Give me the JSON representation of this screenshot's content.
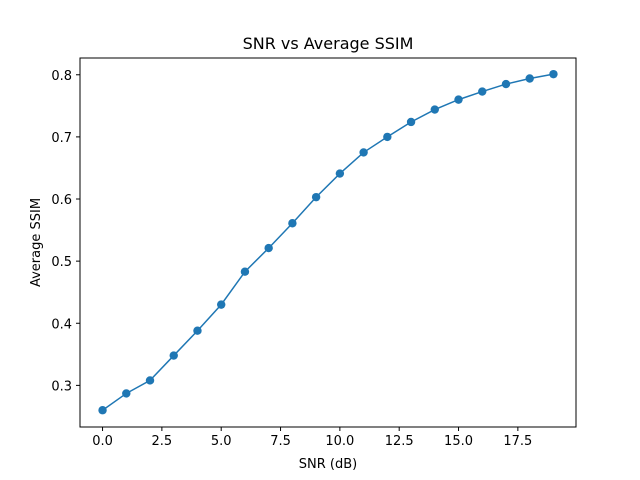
{
  "chart_data": {
    "type": "line",
    "title": "SNR vs Average SSIM",
    "xlabel": "SNR (dB)",
    "ylabel": "Average SSIM",
    "xlim": [
      -0.95,
      19.95
    ],
    "ylim": [
      0.233,
      0.827
    ],
    "grid": false,
    "x_ticks": [
      0.0,
      2.5,
      5.0,
      7.5,
      10.0,
      12.5,
      15.0,
      17.5
    ],
    "x_tick_labels": [
      "0.0",
      "2.5",
      "5.0",
      "7.5",
      "10.0",
      "12.5",
      "15.0",
      "17.5"
    ],
    "y_ticks": [
      0.3,
      0.4,
      0.5,
      0.6,
      0.7,
      0.8
    ],
    "y_tick_labels": [
      "0.3",
      "0.4",
      "0.5",
      "0.6",
      "0.7",
      "0.8"
    ],
    "series": [
      {
        "color": "#1f77b4",
        "marker": "circle",
        "x": [
          0,
          1,
          2,
          3,
          4,
          5,
          6,
          7,
          8,
          9,
          10,
          11,
          12,
          13,
          14,
          15,
          16,
          17,
          18,
          19
        ],
        "y": [
          0.26,
          0.287,
          0.308,
          0.348,
          0.388,
          0.43,
          0.483,
          0.521,
          0.561,
          0.603,
          0.641,
          0.675,
          0.7,
          0.724,
          0.744,
          0.76,
          0.773,
          0.785,
          0.794,
          0.801
        ]
      }
    ]
  }
}
